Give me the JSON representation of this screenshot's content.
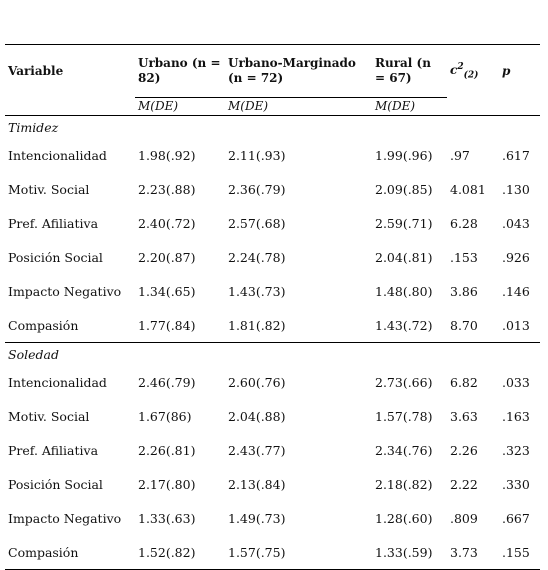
{
  "table": {
    "header": [
      "Variable",
      "Urbano (n = 82)",
      "Urbano-Marginado (n = 72)",
      "Rural (n = 67)",
      {
        "text": "c",
        "sup": "2",
        "sub": "(2)"
      },
      "p"
    ],
    "subheader": [
      "M(DE)",
      "M(DE)",
      "M(DE)"
    ],
    "sections": [
      {
        "title": "Timidez",
        "rows": [
          [
            "Intencionalidad",
            "1.98(.92)",
            "2.11(.93)",
            "1.99(.96)",
            ".97",
            ".617"
          ],
          [
            "Motiv. Social",
            "2.23(.88)",
            "2.36(.79)",
            "2.09(.85)",
            "4.081",
            ".130"
          ],
          [
            "Pref. Afiliativa",
            "2.40(.72)",
            "2.57(.68)",
            "2.59(.71)",
            "6.28",
            ".043"
          ],
          [
            "Posición Social",
            "2.20(.87)",
            "2.24(.78)",
            "2.04(.81)",
            ".153",
            ".926"
          ],
          [
            "Impacto Negativo",
            "1.34(.65)",
            "1.43(.73)",
            "1.48(.80)",
            "3.86",
            ".146"
          ],
          [
            "Compasión",
            "1.77(.84)",
            "1.81(.82)",
            "1.43(.72)",
            "8.70",
            ".013"
          ]
        ]
      },
      {
        "title": "Soledad",
        "rows": [
          [
            "Intencionalidad",
            "2.46(.79)",
            "2.60(.76)",
            "2.73(.66)",
            "6.82",
            ".033"
          ],
          [
            "Motiv. Social",
            "1.67(86)",
            "2.04(.88)",
            "1.57(.78)",
            "3.63",
            ".163"
          ],
          [
            "Pref. Afiliativa",
            "2.26(.81)",
            "2.43(.77)",
            "2.34(.76)",
            "2.26",
            ".323"
          ],
          [
            "Posición Social",
            "2.17(.80)",
            "2.13(.84)",
            "2.18(.82)",
            "2.22",
            ".330"
          ],
          [
            "Impacto Negativo",
            "1.33(.63)",
            "1.49(.73)",
            "1.28(.60)",
            ".809",
            ".667"
          ],
          [
            "Compasión",
            "1.52(.82)",
            "1.57(.75)",
            "1.33(.59)",
            "3.73",
            ".155"
          ]
        ]
      }
    ]
  }
}
